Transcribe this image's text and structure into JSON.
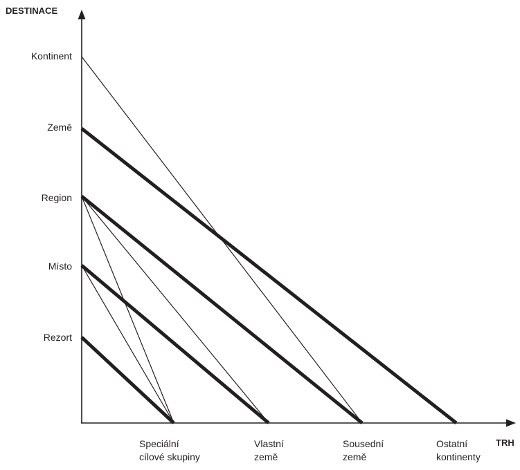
{
  "diagram": {
    "y_axis_title": "DESTINACE",
    "x_axis_title": "TRH",
    "destinations": [
      {
        "id": "kontinent",
        "label": "Kontinent"
      },
      {
        "id": "zeme",
        "label": "Země"
      },
      {
        "id": "region",
        "label": "Region"
      },
      {
        "id": "misto",
        "label": "Místo"
      },
      {
        "id": "rezort",
        "label": "Rezort"
      }
    ],
    "markets": [
      {
        "id": "specialni",
        "line1": "Speciální",
        "line2": "cílové skupiny"
      },
      {
        "id": "vlastni",
        "line1": "Vlastní",
        "line2": "země"
      },
      {
        "id": "sousedni",
        "line1": "Sousední",
        "line2": "země"
      },
      {
        "id": "ostatni",
        "line1": "Ostatní",
        "line2": "kontinenty"
      }
    ],
    "links": [
      {
        "from": "kontinent",
        "to": "sousedni",
        "weight": "thin"
      },
      {
        "from": "zeme",
        "to": "ostatni",
        "weight": "thick"
      },
      {
        "from": "region",
        "to": "sousedni",
        "weight": "thick"
      },
      {
        "from": "region",
        "to": "vlastni",
        "weight": "thin"
      },
      {
        "from": "region",
        "to": "specialni",
        "weight": "thin"
      },
      {
        "from": "misto",
        "to": "vlastni",
        "weight": "thick"
      },
      {
        "from": "misto",
        "to": "specialni",
        "weight": "thin"
      },
      {
        "from": "rezort",
        "to": "specialni",
        "weight": "thick"
      }
    ],
    "colors": {
      "ink": "#231f20"
    }
  }
}
